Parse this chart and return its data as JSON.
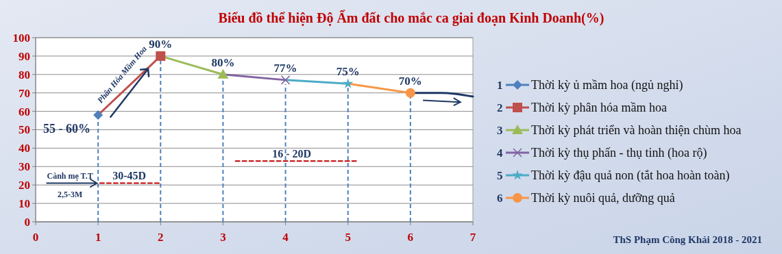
{
  "chart_data": {
    "type": "line",
    "title": "Biểu đồ thể hiện Độ Ẩm đất cho mắc ca giai đoạn Kinh Doanh(%)",
    "xlim": [
      0,
      7
    ],
    "xticks": [
      0,
      1,
      2,
      3,
      4,
      5,
      6,
      7
    ],
    "ylim": [
      0,
      100
    ],
    "yticks": [
      0,
      10,
      20,
      30,
      40,
      50,
      60,
      70,
      80,
      90,
      100
    ],
    "grid": "y",
    "legend": "right",
    "series": [
      {
        "name": "Thời kỳ ủ mầm hoa (ngủ nghỉ)",
        "color": "#4f81bd",
        "marker": "diamond",
        "x": [
          1
        ],
        "values": [
          58
        ]
      },
      {
        "name": "Thời kỳ phân hóa mầm hoa",
        "color": "#c0504d",
        "marker": "square",
        "x": [
          1,
          2
        ],
        "values": [
          58,
          90
        ],
        "value_labels": [
          null,
          "90%"
        ]
      },
      {
        "name": "Thời kỳ phát triển và hoàn thiện chùm hoa",
        "color": "#9bbb59",
        "marker": "triangle",
        "x": [
          2,
          3
        ],
        "values": [
          90,
          80
        ],
        "value_labels": [
          null,
          "80%"
        ]
      },
      {
        "name": "Thời kỳ thụ phấn - thụ tinh (hoa rộ)",
        "color": "#8064a2",
        "marker": "cross",
        "x": [
          3,
          4
        ],
        "values": [
          80,
          77
        ],
        "value_labels": [
          null,
          "77%"
        ]
      },
      {
        "name": "Thời kỳ đậu quả non (tắt hoa hoàn toàn)",
        "color": "#4bacc6",
        "marker": "star",
        "x": [
          4,
          5
        ],
        "values": [
          77,
          75
        ],
        "value_labels": [
          null,
          "75%"
        ]
      },
      {
        "name": "Thời kỳ nuôi quả, dưỡng quả",
        "color": "#f79646",
        "marker": "circle",
        "x": [
          5,
          6
        ],
        "values": [
          75,
          70
        ],
        "value_labels": [
          null,
          "70%"
        ]
      },
      {
        "color": "#1f3864",
        "marker": "none",
        "x": [
          6,
          6.5,
          7
        ],
        "values": [
          70,
          70,
          68
        ]
      },
      {
        "color": "#c00000",
        "marker": "none",
        "line_style": "dashed",
        "x": [
          1.03,
          2
        ],
        "values": [
          21,
          21
        ]
      },
      {
        "color": "#c00000",
        "marker": "none",
        "line_style": "dashed",
        "x": [
          3.2,
          5.15
        ],
        "values": [
          33,
          33
        ]
      }
    ],
    "ref_lines": [
      {
        "axis": "x",
        "value": 1,
        "color": "#4f81bd",
        "line_style": "dashed"
      },
      {
        "axis": "x",
        "value": 2,
        "color": "#4f81bd",
        "line_style": "dashed"
      },
      {
        "axis": "x",
        "value": 3,
        "color": "#4f81bd",
        "line_style": "dashed"
      },
      {
        "axis": "x",
        "value": 4,
        "color": "#4f81bd",
        "line_style": "dashed"
      },
      {
        "axis": "x",
        "value": 5,
        "color": "#4f81bd",
        "line_style": "dashed"
      },
      {
        "axis": "x",
        "value": 6,
        "color": "#4f81bd",
        "line_style": "dashed"
      }
    ],
    "annotations": [
      "55 - 60%",
      "Phân Hóa Mầm Hoa",
      "Cành mẹ T.T",
      "2,5-3M",
      "30-45D",
      "16 - 20D",
      "ThS Phạm Công Khải 2018 - 2021",
      "1",
      "2",
      "3",
      "4",
      "5",
      "6"
    ]
  }
}
